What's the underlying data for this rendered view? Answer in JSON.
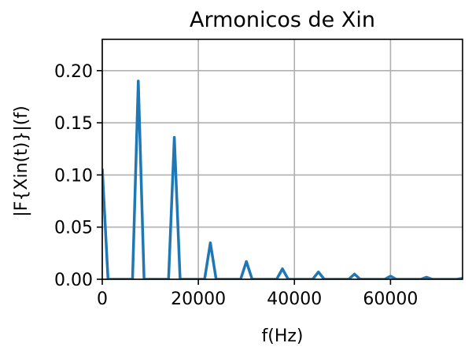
{
  "chart_data": {
    "type": "line",
    "title": "Armonicos de Xin",
    "xlabel": "f(Hz)",
    "ylabel": "|F{Xin(t)}|(f)",
    "xlim": [
      0,
      75000
    ],
    "ylim": [
      0,
      0.23
    ],
    "grid": true,
    "x_ticks": [
      {
        "value": 0,
        "label": "0"
      },
      {
        "value": 20000,
        "label": "20000"
      },
      {
        "value": 40000,
        "label": "40000"
      },
      {
        "value": 60000,
        "label": "60000"
      }
    ],
    "y_ticks": [
      {
        "value": 0.0,
        "label": "0.00"
      },
      {
        "value": 0.05,
        "label": "0.05"
      },
      {
        "value": 0.1,
        "label": "0.10"
      },
      {
        "value": 0.15,
        "label": "0.15"
      },
      {
        "value": 0.2,
        "label": "0.20"
      }
    ],
    "series": [
      {
        "color": "#1f77b4",
        "x": [
          0,
          1200,
          6300,
          7500,
          8700,
          13800,
          15000,
          16200,
          21300,
          22500,
          23700,
          28800,
          30000,
          31200,
          36300,
          37500,
          38700,
          43800,
          45000,
          46200,
          51300,
          52500,
          53700,
          58800,
          60000,
          61200,
          66300,
          67500,
          68700,
          73800,
          75000
        ],
        "y": [
          0.106,
          0,
          0,
          0.19,
          0,
          0,
          0.136,
          0,
          0,
          0.035,
          0,
          0,
          0.017,
          0,
          0,
          0.01,
          0,
          0,
          0.007,
          0,
          0,
          0.005,
          0,
          0,
          0.003,
          0,
          0,
          0.002,
          0,
          0,
          0.001
        ]
      }
    ]
  }
}
